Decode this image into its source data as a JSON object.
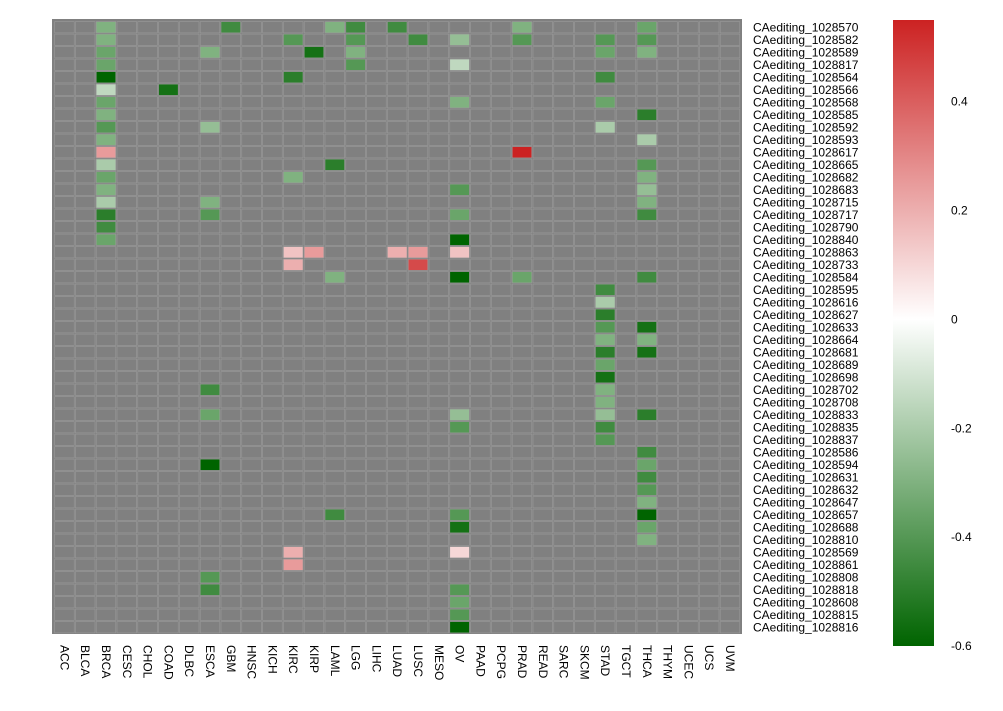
{
  "chart_data": {
    "type": "heatmap",
    "columns": [
      "ACC",
      "BLCA",
      "BRCA",
      "CESC",
      "CHOL",
      "COAD",
      "DLBC",
      "ESCA",
      "GBM",
      "HNSC",
      "KICH",
      "KIRC",
      "KIRP",
      "LAML",
      "LGG",
      "LIHC",
      "LUAD",
      "LUSC",
      "MESO",
      "OV",
      "PAAD",
      "PCPG",
      "PRAD",
      "READ",
      "SARC",
      "SKCM",
      "STAD",
      "TGCT",
      "THCA",
      "THYM",
      "UCEC",
      "UCS",
      "UVM"
    ],
    "rows": [
      "CAediting_1028570",
      "CAediting_1028582",
      "CAediting_1028589",
      "CAediting_1028817",
      "CAediting_1028564",
      "CAediting_1028566",
      "CAediting_1028568",
      "CAediting_1028585",
      "CAediting_1028592",
      "CAediting_1028593",
      "CAediting_1028617",
      "CAediting_1028665",
      "CAediting_1028682",
      "CAediting_1028683",
      "CAediting_1028715",
      "CAediting_1028717",
      "CAediting_1028790",
      "CAediting_1028840",
      "CAediting_1028863",
      "CAediting_1028733",
      "CAediting_1028584",
      "CAediting_1028595",
      "CAediting_1028616",
      "CAediting_1028627",
      "CAediting_1028633",
      "CAediting_1028664",
      "CAediting_1028681",
      "CAediting_1028689",
      "CAediting_1028698",
      "CAediting_1028702",
      "CAediting_1028708",
      "CAediting_1028833",
      "CAediting_1028835",
      "CAediting_1028837",
      "CAediting_1028586",
      "CAediting_1028594",
      "CAediting_1028631",
      "CAediting_1028632",
      "CAediting_1028647",
      "CAediting_1028657",
      "CAediting_1028688",
      "CAediting_1028810",
      "CAediting_1028569",
      "CAediting_1028861",
      "CAediting_1028808",
      "CAediting_1028818",
      "CAediting_1028608",
      "CAediting_1028815",
      "CAediting_1028816"
    ],
    "cells": [
      [
        0,
        "BRCA",
        -0.3
      ],
      [
        0,
        "GBM",
        -0.45
      ],
      [
        0,
        "LAML",
        -0.3
      ],
      [
        0,
        "LGG",
        -0.45
      ],
      [
        0,
        "LUAD",
        -0.45
      ],
      [
        0,
        "PRAD",
        -0.3
      ],
      [
        0,
        "THCA",
        -0.35
      ],
      [
        1,
        "BRCA",
        -0.3
      ],
      [
        1,
        "KIRC",
        -0.4
      ],
      [
        1,
        "LGG",
        -0.4
      ],
      [
        1,
        "LUSC",
        -0.45
      ],
      [
        1,
        "OV",
        -0.25
      ],
      [
        1,
        "PRAD",
        -0.4
      ],
      [
        1,
        "STAD",
        -0.4
      ],
      [
        1,
        "THCA",
        -0.4
      ],
      [
        2,
        "BRCA",
        -0.35
      ],
      [
        2,
        "ESCA",
        -0.3
      ],
      [
        2,
        "KIRP",
        -0.55
      ],
      [
        2,
        "LGG",
        -0.3
      ],
      [
        2,
        "STAD",
        -0.35
      ],
      [
        2,
        "THCA",
        -0.3
      ],
      [
        3,
        "BRCA",
        -0.35
      ],
      [
        3,
        "LGG",
        -0.4
      ],
      [
        3,
        "OV",
        -0.15
      ],
      [
        4,
        "BRCA",
        -0.6
      ],
      [
        4,
        "KIRC",
        -0.5
      ],
      [
        4,
        "STAD",
        -0.45
      ],
      [
        5,
        "BRCA",
        -0.15
      ],
      [
        5,
        "COAD",
        -0.55
      ],
      [
        6,
        "BRCA",
        -0.35
      ],
      [
        6,
        "OV",
        -0.3
      ],
      [
        6,
        "STAD",
        -0.35
      ],
      [
        7,
        "BRCA",
        -0.3
      ],
      [
        7,
        "THCA",
        -0.5
      ],
      [
        8,
        "BRCA",
        -0.4
      ],
      [
        8,
        "ESCA",
        -0.25
      ],
      [
        8,
        "STAD",
        -0.2
      ],
      [
        9,
        "BRCA",
        -0.3
      ],
      [
        9,
        "THCA",
        -0.2
      ],
      [
        10,
        "BRCA",
        0.25
      ],
      [
        10,
        "PRAD",
        0.55
      ],
      [
        11,
        "BRCA",
        -0.2
      ],
      [
        11,
        "LAML",
        -0.5
      ],
      [
        11,
        "THCA",
        -0.4
      ],
      [
        12,
        "BRCA",
        -0.35
      ],
      [
        12,
        "KIRC",
        -0.3
      ],
      [
        12,
        "THCA",
        -0.3
      ],
      [
        13,
        "BRCA",
        -0.3
      ],
      [
        13,
        "OV",
        -0.4
      ],
      [
        13,
        "THCA",
        -0.25
      ],
      [
        14,
        "BRCA",
        -0.2
      ],
      [
        14,
        "ESCA",
        -0.3
      ],
      [
        14,
        "THCA",
        -0.3
      ],
      [
        15,
        "BRCA",
        -0.5
      ],
      [
        15,
        "ESCA",
        -0.4
      ],
      [
        15,
        "OV",
        -0.35
      ],
      [
        15,
        "THCA",
        -0.45
      ],
      [
        16,
        "BRCA",
        -0.45
      ],
      [
        17,
        "BRCA",
        -0.35
      ],
      [
        17,
        "OV",
        -0.6
      ],
      [
        18,
        "KIRC",
        0.15
      ],
      [
        18,
        "KIRP",
        0.25
      ],
      [
        18,
        "LUAD",
        0.2
      ],
      [
        18,
        "LUSC",
        0.25
      ],
      [
        18,
        "OV",
        0.15
      ],
      [
        19,
        "KIRC",
        0.2
      ],
      [
        19,
        "LUSC",
        0.45
      ],
      [
        20,
        "LAML",
        -0.3
      ],
      [
        20,
        "OV",
        -0.6
      ],
      [
        20,
        "PRAD",
        -0.35
      ],
      [
        20,
        "THCA",
        -0.45
      ],
      [
        21,
        "STAD",
        -0.45
      ],
      [
        22,
        "STAD",
        -0.2
      ],
      [
        23,
        "STAD",
        -0.5
      ],
      [
        24,
        "STAD",
        -0.4
      ],
      [
        24,
        "THCA",
        -0.55
      ],
      [
        25,
        "STAD",
        -0.3
      ],
      [
        25,
        "THCA",
        -0.3
      ],
      [
        26,
        "STAD",
        -0.5
      ],
      [
        26,
        "THCA",
        -0.55
      ],
      [
        27,
        "STAD",
        -0.35
      ],
      [
        28,
        "STAD",
        -0.55
      ],
      [
        29,
        "ESCA",
        -0.45
      ],
      [
        29,
        "STAD",
        -0.3
      ],
      [
        30,
        "STAD",
        -0.3
      ],
      [
        31,
        "ESCA",
        -0.35
      ],
      [
        31,
        "OV",
        -0.25
      ],
      [
        31,
        "STAD",
        -0.25
      ],
      [
        31,
        "THCA",
        -0.5
      ],
      [
        32,
        "OV",
        -0.4
      ],
      [
        32,
        "STAD",
        -0.45
      ],
      [
        33,
        "STAD",
        -0.4
      ],
      [
        34,
        "THCA",
        -0.45
      ],
      [
        35,
        "ESCA",
        -0.6
      ],
      [
        35,
        "THCA",
        -0.35
      ],
      [
        36,
        "THCA",
        -0.45
      ],
      [
        37,
        "THCA",
        -0.4
      ],
      [
        38,
        "THCA",
        -0.3
      ],
      [
        39,
        "LAML",
        -0.45
      ],
      [
        39,
        "OV",
        -0.4
      ],
      [
        39,
        "THCA",
        -0.6
      ],
      [
        40,
        "OV",
        -0.55
      ],
      [
        40,
        "THCA",
        -0.35
      ],
      [
        41,
        "THCA",
        -0.3
      ],
      [
        42,
        "KIRC",
        0.2
      ],
      [
        42,
        "OV",
        0.1
      ],
      [
        43,
        "KIRC",
        0.25
      ],
      [
        44,
        "ESCA",
        -0.4
      ],
      [
        45,
        "ESCA",
        -0.45
      ],
      [
        45,
        "OV",
        -0.4
      ],
      [
        46,
        "OV",
        -0.35
      ],
      [
        47,
        "OV",
        -0.4
      ],
      [
        48,
        "OV",
        -0.6
      ]
    ],
    "na_color": "#808080",
    "colorbar": {
      "min": -0.6,
      "max": 0.55,
      "ticks": [
        "0.4",
        "0.2",
        "0",
        "-0.2",
        "-0.4",
        "-0.6"
      ],
      "tick_values": [
        0.4,
        0.2,
        0,
        -0.2,
        -0.4,
        -0.6
      ],
      "low_color": "#006400",
      "mid_color": "#ffffff",
      "high_color": "#cc2222"
    }
  }
}
